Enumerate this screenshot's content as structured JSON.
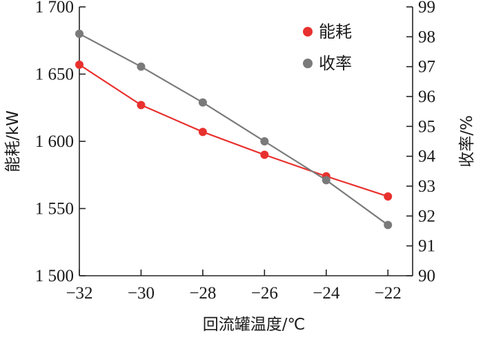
{
  "chart_data": {
    "type": "line",
    "x": [
      -32,
      -30,
      -28,
      -26,
      -24,
      -22
    ],
    "x_tick_labels": [
      "−32",
      "−30",
      "−28",
      "−26",
      "−24",
      "−22"
    ],
    "xlim": [
      -32,
      -21.2
    ],
    "xlabel": "回流罐温度/℃",
    "y_left": {
      "label": "能耗/kW",
      "ylim": [
        1500,
        1700
      ],
      "ticks": [
        1500,
        1550,
        1600,
        1650,
        1700
      ],
      "tick_labels": [
        "1 500",
        "1 550",
        "1 600",
        "1 650",
        "1 700"
      ]
    },
    "y_right": {
      "label": "收率/%",
      "ylim": [
        90,
        99
      ],
      "ticks": [
        90,
        91,
        92,
        93,
        94,
        95,
        96,
        97,
        98,
        99
      ],
      "tick_labels": [
        "90",
        "91",
        "92",
        "93",
        "94",
        "95",
        "96",
        "97",
        "98",
        "99"
      ]
    },
    "series": [
      {
        "name": "能耗",
        "axis": "left",
        "color": "#e8312f",
        "values": [
          1657,
          1627,
          1607,
          1590,
          1574,
          1559
        ]
      },
      {
        "name": "收率",
        "axis": "right",
        "color": "#7a7a7a",
        "values": [
          98.1,
          97.0,
          95.8,
          94.5,
          93.2,
          91.7
        ]
      }
    ],
    "legend_position": "top-right",
    "grid": false
  }
}
